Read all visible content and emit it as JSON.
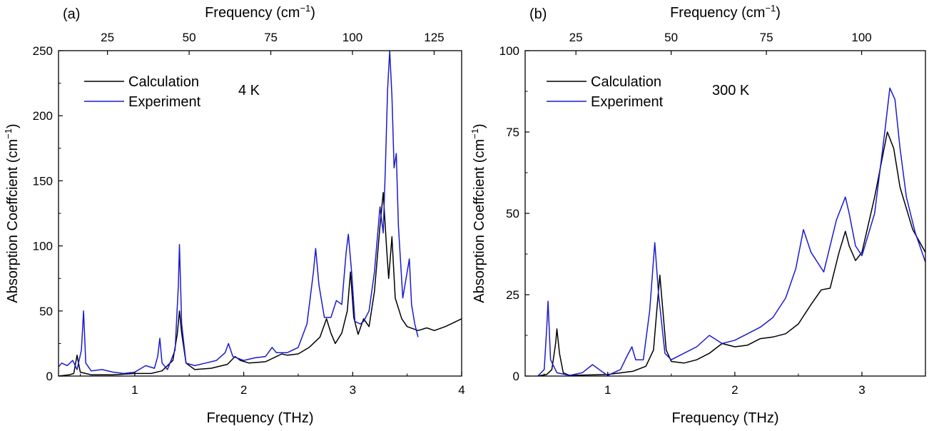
{
  "chart_data": [
    {
      "panel_label": "(a)",
      "type": "line",
      "top_axis_label": "Frequency (cm",
      "top_axis_sup": "−1",
      "top_axis_close": ")",
      "top_ticks": [
        25,
        50,
        75,
        100,
        125
      ],
      "xlabel": "Frequency (THz)",
      "ylabel": "Absorption Coeffcient (cm",
      "ylabel_sup": "−1",
      "ylabel_close": ")",
      "xlim": [
        0.3,
        4.0
      ],
      "ylim": [
        0,
        250
      ],
      "xticks": [
        1,
        2,
        3,
        4
      ],
      "yticks": [
        0,
        50,
        100,
        150,
        200,
        250
      ],
      "annotation": "4 K",
      "legend_position": "top-left",
      "grid": false,
      "series": [
        {
          "name": "Calculation",
          "color": "#000000",
          "points": [
            [
              0.3,
              0
            ],
            [
              0.4,
              1
            ],
            [
              0.44,
              2
            ],
            [
              0.47,
              16
            ],
            [
              0.5,
              3
            ],
            [
              0.55,
              2
            ],
            [
              0.6,
              1
            ],
            [
              0.8,
              1
            ],
            [
              1.0,
              2
            ],
            [
              1.15,
              2
            ],
            [
              1.25,
              4
            ],
            [
              1.35,
              12
            ],
            [
              1.39,
              32
            ],
            [
              1.41,
              50
            ],
            [
              1.43,
              33
            ],
            [
              1.47,
              10
            ],
            [
              1.55,
              5
            ],
            [
              1.7,
              6
            ],
            [
              1.85,
              9
            ],
            [
              1.92,
              15
            ],
            [
              1.97,
              12
            ],
            [
              2.05,
              10
            ],
            [
              2.2,
              11
            ],
            [
              2.3,
              15
            ],
            [
              2.35,
              17
            ],
            [
              2.4,
              16
            ],
            [
              2.5,
              17
            ],
            [
              2.6,
              22
            ],
            [
              2.7,
              30
            ],
            [
              2.76,
              44
            ],
            [
              2.8,
              33
            ],
            [
              2.84,
              25
            ],
            [
              2.9,
              33
            ],
            [
              2.95,
              50
            ],
            [
              2.98,
              80
            ],
            [
              3.01,
              45
            ],
            [
              3.05,
              32
            ],
            [
              3.1,
              44
            ],
            [
              3.15,
              38
            ],
            [
              3.2,
              65
            ],
            [
              3.25,
              115
            ],
            [
              3.28,
              141
            ],
            [
              3.31,
              100
            ],
            [
              3.33,
              75
            ],
            [
              3.36,
              107
            ],
            [
              3.39,
              60
            ],
            [
              3.45,
              44
            ],
            [
              3.5,
              38
            ],
            [
              3.6,
              35
            ],
            [
              3.68,
              37
            ],
            [
              3.75,
              35
            ],
            [
              3.85,
              38
            ],
            [
              3.95,
              42
            ],
            [
              4.0,
              44
            ]
          ]
        },
        {
          "name": "Experiment",
          "color": "#1a1ad0",
          "points": [
            [
              0.3,
              7
            ],
            [
              0.33,
              10
            ],
            [
              0.38,
              8
            ],
            [
              0.43,
              12
            ],
            [
              0.47,
              5
            ],
            [
              0.51,
              20
            ],
            [
              0.53,
              50
            ],
            [
              0.55,
              10
            ],
            [
              0.6,
              4
            ],
            [
              0.7,
              5
            ],
            [
              0.8,
              3
            ],
            [
              0.9,
              2
            ],
            [
              1.0,
              3
            ],
            [
              1.1,
              8
            ],
            [
              1.18,
              6
            ],
            [
              1.21,
              15
            ],
            [
              1.23,
              29
            ],
            [
              1.25,
              10
            ],
            [
              1.3,
              5
            ],
            [
              1.37,
              20
            ],
            [
              1.4,
              70
            ],
            [
              1.41,
              101
            ],
            [
              1.43,
              40
            ],
            [
              1.47,
              10
            ],
            [
              1.55,
              8
            ],
            [
              1.65,
              10
            ],
            [
              1.75,
              12
            ],
            [
              1.83,
              18
            ],
            [
              1.86,
              25
            ],
            [
              1.9,
              15
            ],
            [
              2.0,
              12
            ],
            [
              2.1,
              14
            ],
            [
              2.2,
              15
            ],
            [
              2.26,
              22
            ],
            [
              2.3,
              18
            ],
            [
              2.4,
              18
            ],
            [
              2.5,
              22
            ],
            [
              2.58,
              40
            ],
            [
              2.64,
              80
            ],
            [
              2.66,
              98
            ],
            [
              2.69,
              70
            ],
            [
              2.74,
              45
            ],
            [
              2.8,
              45
            ],
            [
              2.85,
              58
            ],
            [
              2.9,
              55
            ],
            [
              2.94,
              95
            ],
            [
              2.96,
              109
            ],
            [
              2.99,
              80
            ],
            [
              3.02,
              42
            ],
            [
              3.07,
              40
            ],
            [
              3.1,
              42
            ],
            [
              3.15,
              50
            ],
            [
              3.2,
              80
            ],
            [
              3.25,
              130
            ],
            [
              3.28,
              110
            ],
            [
              3.3,
              160
            ],
            [
              3.32,
              220
            ],
            [
              3.34,
              250
            ],
            [
              3.36,
              215
            ],
            [
              3.38,
              160
            ],
            [
              3.4,
              171
            ],
            [
              3.42,
              115
            ],
            [
              3.46,
              60
            ],
            [
              3.49,
              75
            ],
            [
              3.52,
              90
            ],
            [
              3.54,
              55
            ],
            [
              3.57,
              40
            ],
            [
              3.6,
              30
            ]
          ]
        }
      ]
    },
    {
      "panel_label": "(b)",
      "type": "line",
      "top_axis_label": "Frequency (cm",
      "top_axis_sup": "−1",
      "top_axis_close": ")",
      "top_ticks": [
        25,
        50,
        75,
        100
      ],
      "xlabel": "Frequency (THz)",
      "ylabel": "Absorption Coeffcient (cm",
      "ylabel_sup": "−1",
      "ylabel_close": ")",
      "xlim": [
        0.35,
        3.5
      ],
      "ylim": [
        0,
        100
      ],
      "xticks": [
        1,
        2,
        3
      ],
      "yticks": [
        0,
        25,
        50,
        75,
        100
      ],
      "annotation": "300 K",
      "legend_position": "top-left",
      "grid": false,
      "series": [
        {
          "name": "Calculation",
          "color": "#000000",
          "points": [
            [
              0.45,
              0
            ],
            [
              0.52,
              0.5
            ],
            [
              0.56,
              2
            ],
            [
              0.59,
              10
            ],
            [
              0.6,
              14.5
            ],
            [
              0.62,
              7
            ],
            [
              0.65,
              1
            ],
            [
              0.7,
              0.2
            ],
            [
              1.0,
              0.5
            ],
            [
              1.2,
              1.5
            ],
            [
              1.3,
              3
            ],
            [
              1.36,
              8
            ],
            [
              1.39,
              22
            ],
            [
              1.41,
              31
            ],
            [
              1.43,
              22
            ],
            [
              1.46,
              8
            ],
            [
              1.5,
              4.5
            ],
            [
              1.6,
              4
            ],
            [
              1.7,
              5
            ],
            [
              1.8,
              7
            ],
            [
              1.9,
              10
            ],
            [
              2.0,
              9
            ],
            [
              2.1,
              9.5
            ],
            [
              2.2,
              11.5
            ],
            [
              2.3,
              12
            ],
            [
              2.4,
              13
            ],
            [
              2.5,
              16
            ],
            [
              2.6,
              22
            ],
            [
              2.68,
              26.5
            ],
            [
              2.75,
              27
            ],
            [
              2.82,
              38
            ],
            [
              2.87,
              44.5
            ],
            [
              2.9,
              40
            ],
            [
              2.95,
              35.5
            ],
            [
              3.0,
              38
            ],
            [
              3.1,
              55
            ],
            [
              3.2,
              75
            ],
            [
              3.25,
              70
            ],
            [
              3.3,
              58
            ],
            [
              3.4,
              45
            ],
            [
              3.5,
              38
            ]
          ]
        },
        {
          "name": "Experiment",
          "color": "#1a1ad0",
          "points": [
            [
              0.45,
              0
            ],
            [
              0.5,
              2
            ],
            [
              0.52,
              15
            ],
            [
              0.53,
              23
            ],
            [
              0.55,
              5
            ],
            [
              0.6,
              1
            ],
            [
              0.7,
              0.2
            ],
            [
              0.8,
              1
            ],
            [
              0.88,
              3.5
            ],
            [
              0.95,
              1.5
            ],
            [
              1.0,
              0.2
            ],
            [
              1.1,
              2
            ],
            [
              1.15,
              6
            ],
            [
              1.19,
              9
            ],
            [
              1.22,
              5
            ],
            [
              1.28,
              5
            ],
            [
              1.33,
              20
            ],
            [
              1.37,
              41
            ],
            [
              1.4,
              25
            ],
            [
              1.45,
              7
            ],
            [
              1.5,
              5
            ],
            [
              1.6,
              7
            ],
            [
              1.7,
              9
            ],
            [
              1.8,
              12.5
            ],
            [
              1.9,
              10
            ],
            [
              2.0,
              11
            ],
            [
              2.1,
              13
            ],
            [
              2.2,
              15
            ],
            [
              2.3,
              18
            ],
            [
              2.4,
              24
            ],
            [
              2.48,
              33
            ],
            [
              2.54,
              45
            ],
            [
              2.6,
              38
            ],
            [
              2.7,
              32
            ],
            [
              2.8,
              48
            ],
            [
              2.87,
              55
            ],
            [
              2.9,
              50
            ],
            [
              2.95,
              40
            ],
            [
              3.0,
              37
            ],
            [
              3.1,
              50
            ],
            [
              3.18,
              75
            ],
            [
              3.22,
              88.5
            ],
            [
              3.26,
              85
            ],
            [
              3.3,
              70
            ],
            [
              3.35,
              55
            ],
            [
              3.42,
              44
            ],
            [
              3.5,
              35
            ]
          ]
        }
      ]
    }
  ]
}
